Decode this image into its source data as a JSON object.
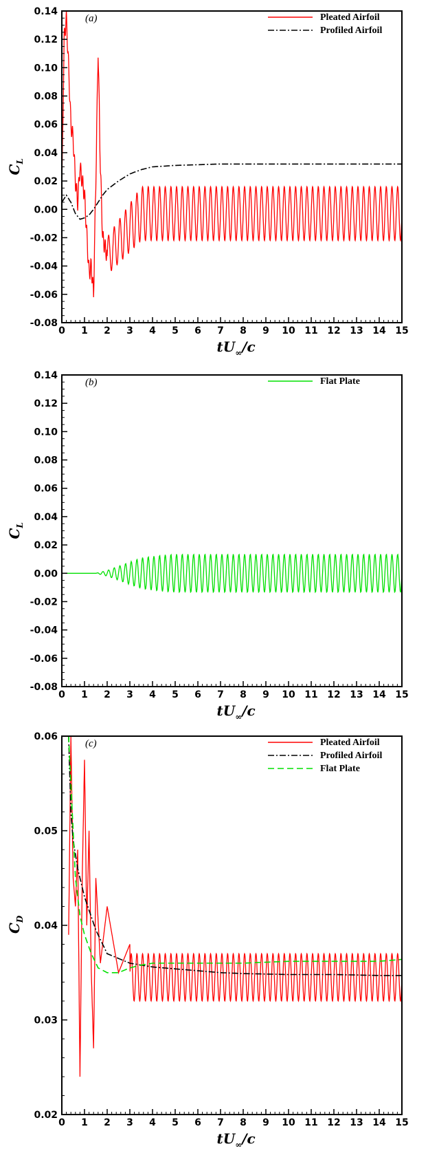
{
  "colors": {
    "pleated": "#ff0000",
    "profiled": "#000000",
    "flat": "#00e000"
  },
  "chart_data": [
    {
      "type": "line",
      "panel_label": "(a)",
      "xlabel": "tU",
      "xlabel_sub": "∞",
      "xlabel_tail": "/c",
      "ylabel": "C",
      "ylabel_sub": "L",
      "xlim": [
        0,
        15
      ],
      "ylim": [
        -0.08,
        0.14
      ],
      "xticks": [
        "0",
        "1",
        "2",
        "3",
        "4",
        "5",
        "6",
        "7",
        "8",
        "9",
        "10",
        "11",
        "12",
        "13",
        "14",
        "15"
      ],
      "yticks": [
        "-0.08",
        "-0.06",
        "-0.04",
        "-0.02",
        "0.00",
        "0.02",
        "0.04",
        "0.06",
        "0.08",
        "0.10",
        "0.12",
        "0.14"
      ],
      "legend_position": "top-right",
      "series": [
        {
          "name": "Pleated Airfoil",
          "style": "solid",
          "color": "#ff0000",
          "x": [
            0,
            0.1,
            0.2,
            0.3,
            0.4,
            0.5,
            0.6,
            0.7,
            0.8,
            1.0,
            1.2,
            1.3,
            1.4,
            1.5,
            1.6,
            1.7,
            1.8,
            2.0,
            2.5,
            3,
            4,
            5,
            6,
            7,
            8,
            10,
            12,
            14,
            15
          ],
          "y": [
            0.01,
            0.12,
            0.135,
            0.1,
            0.06,
            0.05,
            0.02,
            0.005,
            0.03,
            0.01,
            -0.045,
            -0.04,
            -0.06,
            0.02,
            0.113,
            0.03,
            -0.02,
            -0.033,
            -0.01,
            -0.018,
            -0.021,
            -0.023,
            -0.024,
            -0.024,
            -0.023,
            -0.023,
            -0.023,
            -0.022,
            -0.02
          ],
          "oscillation_amplitude": 0.019,
          "oscillation_center": -0.003,
          "oscillation_period": 0.25
        },
        {
          "name": "Profiled Airfoil",
          "style": "dashdot",
          "color": "#000000",
          "x": [
            0,
            0.2,
            0.4,
            0.6,
            0.8,
            1.0,
            1.2,
            1.4,
            1.6,
            1.8,
            2.0,
            2.5,
            3.0,
            3.5,
            4.0,
            5,
            6,
            7,
            8,
            10,
            12,
            14,
            15
          ],
          "y": [
            0.005,
            0.01,
            0.005,
            -0.003,
            -0.007,
            -0.006,
            -0.004,
            0.0,
            0.005,
            0.01,
            0.014,
            0.02,
            0.025,
            0.028,
            0.03,
            0.031,
            0.0315,
            0.032,
            0.032,
            0.032,
            0.032,
            0.032,
            0.032
          ]
        }
      ]
    },
    {
      "type": "line",
      "panel_label": "(b)",
      "xlabel": "tU",
      "xlabel_sub": "∞",
      "xlabel_tail": "/c",
      "ylabel": "C",
      "ylabel_sub": "L",
      "xlim": [
        0,
        15
      ],
      "ylim": [
        -0.08,
        0.14
      ],
      "xticks": [
        "0",
        "1",
        "2",
        "3",
        "4",
        "5",
        "6",
        "7",
        "8",
        "9",
        "10",
        "11",
        "12",
        "13",
        "14",
        "15"
      ],
      "yticks": [
        "-0.08",
        "-0.06",
        "-0.04",
        "-0.02",
        "0.00",
        "0.02",
        "0.04",
        "0.06",
        "0.08",
        "0.10",
        "0.12",
        "0.14"
      ],
      "legend_position": "top-right",
      "series": [
        {
          "name": "Flat Plate",
          "style": "solid",
          "color": "#00e000",
          "envelope_x": [
            0,
            1.5,
            2.0,
            2.5,
            3.0,
            3.5,
            4.0,
            4.5,
            5.0,
            15
          ],
          "envelope_amplitude": [
            0,
            0.0,
            0.002,
            0.005,
            0.008,
            0.011,
            0.012,
            0.013,
            0.0135,
            0.0135
          ],
          "center": 0.0,
          "oscillation_period": 0.25
        }
      ]
    },
    {
      "type": "line",
      "panel_label": "(c)",
      "xlabel": "tU",
      "xlabel_sub": "∞",
      "xlabel_tail": "/c",
      "ylabel": "C",
      "ylabel_sub": "D",
      "xlim": [
        0,
        15
      ],
      "ylim": [
        0.02,
        0.06
      ],
      "xticks": [
        "0",
        "1",
        "2",
        "3",
        "4",
        "5",
        "6",
        "7",
        "8",
        "9",
        "10",
        "11",
        "12",
        "13",
        "14",
        "15"
      ],
      "yticks": [
        "0.02",
        "0.03",
        "0.04",
        "0.05",
        "0.06"
      ],
      "legend_position": "top-right",
      "series": [
        {
          "name": "Pleated Airfoil",
          "style": "solid",
          "color": "#ff0000",
          "x": [
            0.3,
            0.4,
            0.5,
            0.6,
            0.7,
            0.8,
            0.9,
            1.0,
            1.1,
            1.2,
            1.3,
            1.4,
            1.5,
            1.7,
            2.0,
            2.5,
            3.0,
            3.5,
            4,
            5,
            6,
            7,
            8,
            10,
            12,
            14,
            15
          ],
          "y": [
            0.039,
            0.06,
            0.045,
            0.042,
            0.048,
            0.024,
            0.045,
            0.0575,
            0.04,
            0.05,
            0.035,
            0.027,
            0.045,
            0.036,
            0.042,
            0.035,
            0.038,
            0.031,
            0.032,
            0.032,
            0.032,
            0.032,
            0.032,
            0.032,
            0.0325,
            0.0328,
            0.033
          ],
          "oscillation_center": 0.0345,
          "oscillation_amplitude": 0.0025,
          "oscillation_period": 0.25
        },
        {
          "name": "Profiled Airfoil",
          "style": "dashdot",
          "color": "#000000",
          "x": [
            0.3,
            0.4,
            0.5,
            0.7,
            1.0,
            1.5,
            2.0,
            2.5,
            3.0,
            3.5,
            4,
            5,
            6,
            7,
            8,
            10,
            12,
            14,
            15
          ],
          "y": [
            0.06,
            0.052,
            0.049,
            0.046,
            0.043,
            0.0395,
            0.037,
            0.0365,
            0.036,
            0.0358,
            0.0356,
            0.0354,
            0.0352,
            0.035,
            0.0349,
            0.0348,
            0.0348,
            0.0347,
            0.0347
          ]
        },
        {
          "name": "Flat Plate",
          "style": "dashed",
          "color": "#00e000",
          "x": [
            0.3,
            0.4,
            0.5,
            0.6,
            0.8,
            1.0,
            1.3,
            1.6,
            2.0,
            2.5,
            3.0,
            3.5,
            4,
            5,
            6,
            8,
            10,
            12,
            14,
            15
          ],
          "y": [
            0.06,
            0.055,
            0.05,
            0.045,
            0.041,
            0.039,
            0.037,
            0.0355,
            0.035,
            0.035,
            0.0355,
            0.0358,
            0.036,
            0.036,
            0.036,
            0.036,
            0.0362,
            0.0362,
            0.0362,
            0.0364
          ]
        }
      ]
    }
  ]
}
